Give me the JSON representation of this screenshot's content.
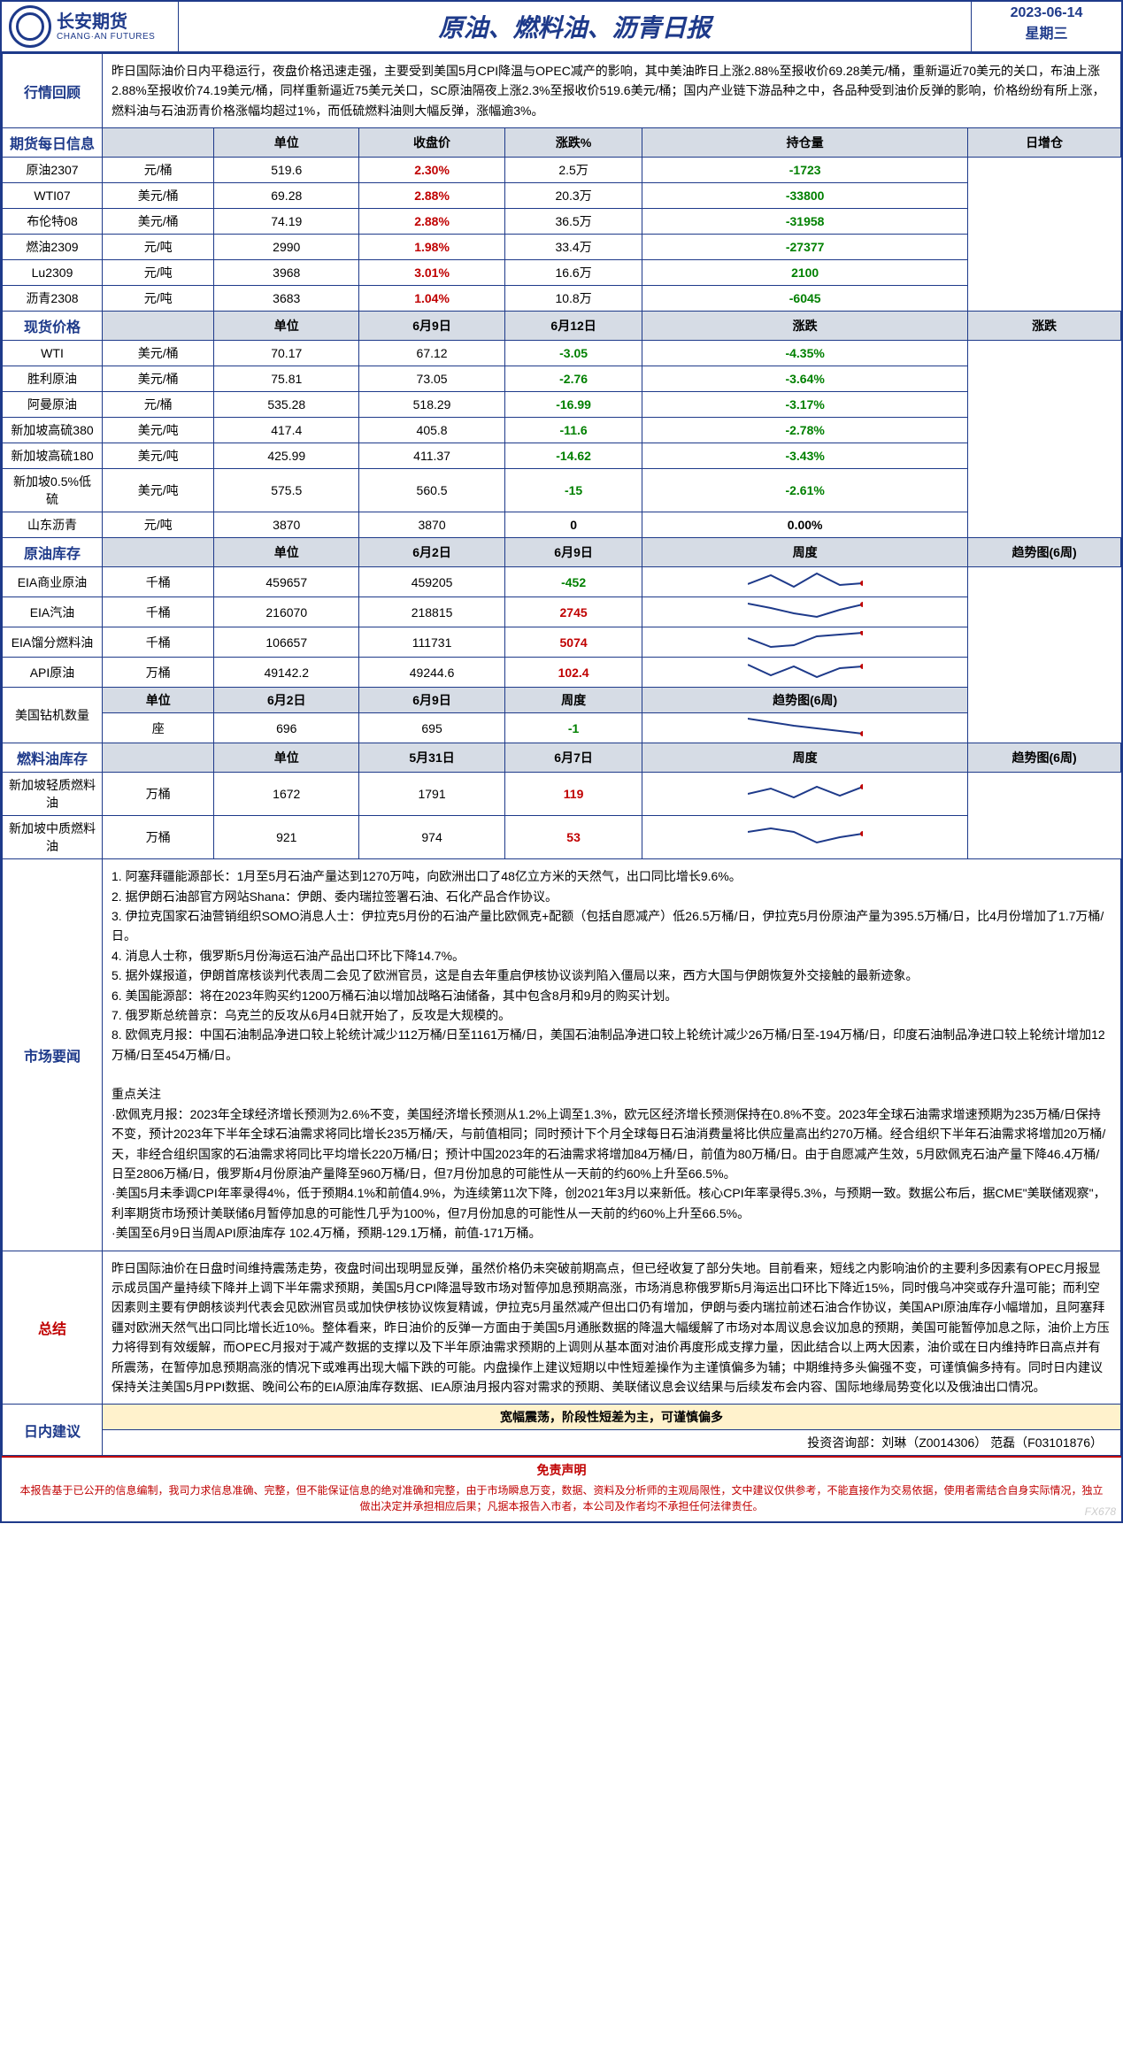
{
  "header": {
    "logo_cn": "长安期货",
    "logo_en": "CHANG·AN FUTURES",
    "title": "原油、燃料油、沥青日报",
    "date": "2023-06-14",
    "weekday": "星期三"
  },
  "review": {
    "label": "行情回顾",
    "text": "昨日国际油价日内平稳运行，夜盘价格迅速走强，主要受到美国5月CPI降温与OPEC减产的影响，其中美油昨日上涨2.88%至报收价69.28美元/桶，重新逼近70美元的关口，布油上涨2.88%至报收价74.19美元/桶，同样重新逼近75美元关口，SC原油隔夜上涨2.3%至报收价519.6美元/桶；国内产业链下游品种之中，各品种受到油价反弹的影响，价格纷纷有所上涨，燃料油与石油沥青价格涨幅均超过1%，而低硫燃料油则大幅反弹，涨幅逾3%。"
  },
  "futures": {
    "label": "期货每日信息",
    "cols": [
      "单位",
      "收盘价",
      "涨跌%",
      "持仓量",
      "日增仓"
    ],
    "rows": [
      {
        "name": "原油2307",
        "unit": "元/桶",
        "close": "519.6",
        "pct": "2.30%",
        "pct_cls": "red",
        "oi": "2.5万",
        "chg": "-1723",
        "chg_cls": "green"
      },
      {
        "name": "WTI07",
        "unit": "美元/桶",
        "close": "69.28",
        "pct": "2.88%",
        "pct_cls": "red",
        "oi": "20.3万",
        "chg": "-33800",
        "chg_cls": "green"
      },
      {
        "name": "布伦特08",
        "unit": "美元/桶",
        "close": "74.19",
        "pct": "2.88%",
        "pct_cls": "red",
        "oi": "36.5万",
        "chg": "-31958",
        "chg_cls": "green"
      },
      {
        "name": "燃油2309",
        "unit": "元/吨",
        "close": "2990",
        "pct": "1.98%",
        "pct_cls": "red",
        "oi": "33.4万",
        "chg": "-27377",
        "chg_cls": "green"
      },
      {
        "name": "Lu2309",
        "unit": "元/吨",
        "close": "3968",
        "pct": "3.01%",
        "pct_cls": "red",
        "oi": "16.6万",
        "chg": "2100",
        "chg_cls": "green"
      },
      {
        "name": "沥青2308",
        "unit": "元/吨",
        "close": "3683",
        "pct": "1.04%",
        "pct_cls": "red",
        "oi": "10.8万",
        "chg": "-6045",
        "chg_cls": "green"
      }
    ]
  },
  "spot": {
    "label": "现货价格",
    "cols": [
      "单位",
      "6月9日",
      "6月12日",
      "涨跌",
      "涨跌"
    ],
    "rows": [
      {
        "name": "WTI",
        "unit": "美元/桶",
        "d1": "70.17",
        "d2": "67.12",
        "chg": "-3.05",
        "chg_cls": "green",
        "pct": "-4.35%",
        "pct_cls": "green"
      },
      {
        "name": "胜利原油",
        "unit": "美元/桶",
        "d1": "75.81",
        "d2": "73.05",
        "chg": "-2.76",
        "chg_cls": "green",
        "pct": "-3.64%",
        "pct_cls": "green"
      },
      {
        "name": "阿曼原油",
        "unit": "元/桶",
        "d1": "535.28",
        "d2": "518.29",
        "chg": "-16.99",
        "chg_cls": "green",
        "pct": "-3.17%",
        "pct_cls": "green"
      },
      {
        "name": "新加坡高硫380",
        "unit": "美元/吨",
        "d1": "417.4",
        "d2": "405.8",
        "chg": "-11.6",
        "chg_cls": "green",
        "pct": "-2.78%",
        "pct_cls": "green"
      },
      {
        "name": "新加坡高硫180",
        "unit": "美元/吨",
        "d1": "425.99",
        "d2": "411.37",
        "chg": "-14.62",
        "chg_cls": "green",
        "pct": "-3.43%",
        "pct_cls": "green"
      },
      {
        "name": "新加坡0.5%低硫",
        "unit": "美元/吨",
        "d1": "575.5",
        "d2": "560.5",
        "chg": "-15",
        "chg_cls": "green",
        "pct": "-2.61%",
        "pct_cls": "green"
      },
      {
        "name": "山东沥青",
        "unit": "元/吨",
        "d1": "3870",
        "d2": "3870",
        "chg": "0",
        "chg_cls": "blue-bold",
        "pct": "0.00%",
        "pct_cls": "blue-bold"
      }
    ]
  },
  "inventory": {
    "label": "原油库存",
    "cols": [
      "单位",
      "6月2日",
      "6月9日",
      "周度",
      "趋势图(6周)"
    ],
    "rows": [
      {
        "name": "EIA商业原油",
        "unit": "千桶",
        "d1": "459657",
        "d2": "459205",
        "chg": "-452",
        "chg_cls": "green",
        "spark": [
          15,
          5,
          18,
          3,
          16,
          14
        ]
      },
      {
        "name": "EIA汽油",
        "unit": "千桶",
        "d1": "216070",
        "d2": "218815",
        "chg": "2745",
        "chg_cls": "red",
        "spark": [
          3,
          8,
          14,
          18,
          10,
          4
        ]
      },
      {
        "name": "EIA馏分燃料油",
        "unit": "千桶",
        "d1": "106657",
        "d2": "111731",
        "chg": "5074",
        "chg_cls": "red",
        "spark": [
          8,
          18,
          16,
          6,
          4,
          2
        ]
      },
      {
        "name": "API原油",
        "unit": "万桶",
        "d1": "49142.2",
        "d2": "49244.6",
        "chg": "102.4",
        "chg_cls": "red",
        "spark": [
          4,
          16,
          6,
          18,
          8,
          6
        ]
      }
    ],
    "rigs": {
      "name": "美国钻机数量",
      "cols": [
        "单位",
        "6月2日",
        "6月9日",
        "周度",
        "趋势图(6周)"
      ],
      "unit": "座",
      "d1": "696",
      "d2": "695",
      "chg": "-1",
      "chg_cls": "green",
      "spark": [
        2,
        6,
        10,
        13,
        16,
        19
      ]
    }
  },
  "fuel_inv": {
    "label": "燃料油库存",
    "cols": [
      "单位",
      "5月31日",
      "6月7日",
      "周度",
      "趋势图(6周)"
    ],
    "rows": [
      {
        "name": "新加坡轻质燃料油",
        "unit": "万桶",
        "d1": "1672",
        "d2": "1791",
        "chg": "119",
        "chg_cls": "red",
        "spark": [
          12,
          6,
          16,
          4,
          14,
          4
        ]
      },
      {
        "name": "新加坡中质燃料油",
        "unit": "万桶",
        "d1": "921",
        "d2": "974",
        "chg": "53",
        "chg_cls": "red",
        "spark": [
          6,
          2,
          6,
          18,
          12,
          8
        ]
      }
    ]
  },
  "news": {
    "label": "市场要闻",
    "items": [
      "1. 阿塞拜疆能源部长：1月至5月石油产量达到1270万吨，向欧洲出口了48亿立方米的天然气，出口同比增长9.6%。",
      "2. 据伊朗石油部官方网站Shana：伊朗、委内瑞拉签署石油、石化产品合作协议。",
      "3. 伊拉克国家石油营销组织SOMO消息人士：伊拉克5月份的石油产量比欧佩克+配额（包括自愿减产）低26.5万桶/日，伊拉克5月份原油产量为395.5万桶/日，比4月份增加了1.7万桶/日。",
      "4. 消息人士称，俄罗斯5月份海运石油产品出口环比下降14.7%。",
      "5. 据外媒报道，伊朗首席核谈判代表周二会见了欧洲官员，这是自去年重启伊核协议谈判陷入僵局以来，西方大国与伊朗恢复外交接触的最新迹象。",
      "6. 美国能源部：将在2023年购买约1200万桶石油以增加战略石油储备，其中包含8月和9月的购买计划。",
      "7. 俄罗斯总统普京：乌克兰的反攻从6月4日就开始了，反攻是大规模的。",
      "8. 欧佩克月报：中国石油制品净进口较上轮统计减少112万桶/日至1161万桶/日，美国石油制品净进口较上轮统计减少26万桶/日至-194万桶/日，印度石油制品净进口较上轮统计增加12万桶/日至454万桶/日。"
    ],
    "focus_label": "重点关注",
    "focus": [
      "·欧佩克月报：2023年全球经济增长预测为2.6%不变，美国经济增长预测从1.2%上调至1.3%，欧元区经济增长预测保持在0.8%不变。2023年全球石油需求增速预期为235万桶/日保持不变，预计2023年下半年全球石油需求将同比增长235万桶/天，与前值相同；同时预计下个月全球每日石油消费量将比供应量高出约270万桶。经合组织下半年石油需求将增加20万桶/天，非经合组织国家的石油需求将同比平均增长220万桶/日；预计中国2023年的石油需求将增加84万桶/日，前值为80万桶/日。由于自愿减产生效，5月欧佩克石油产量下降46.4万桶/日至2806万桶/日，俄罗斯4月份原油产量降至960万桶/日，但7月份加息的可能性从一天前的约60%上升至66.5%。",
      "·美国5月未季调CPI年率录得4%，低于预期4.1%和前值4.9%，为连续第11次下降，创2021年3月以来新低。核心CPI年率录得5.3%，与预期一致。数据公布后，据CME\"美联储观察\"，利率期货市场预计美联储6月暂停加息的可能性几乎为100%，但7月份加息的可能性从一天前的约60%上升至66.5%。",
      "·美国至6月9日当周API原油库存 102.4万桶，预期-129.1万桶，前值-171万桶。"
    ]
  },
  "summary": {
    "label": "总结",
    "text": "昨日国际油价在日盘时间维持震荡走势，夜盘时间出现明显反弹，虽然价格仍未突破前期高点，但已经收复了部分失地。目前看来，短线之内影响油价的主要利多因素有OPEC月报显示成员国产量持续下降并上调下半年需求预期，美国5月CPI降温导致市场对暂停加息预期高涨，市场消息称俄罗斯5月海运出口环比下降近15%，同时俄乌冲突或存升温可能；而利空因素则主要有伊朗核谈判代表会见欧洲官员或加快伊核协议恢复精诚，伊拉克5月虽然减产但出口仍有增加，伊朗与委内瑞拉前述石油合作协议，美国API原油库存小幅增加，且阿塞拜疆对欧洲天然气出口同比增长近10%。整体看来，昨日油价的反弹一方面由于美国5月通胀数据的降温大幅缓解了市场对本周议息会议加息的预期，美国可能暂停加息之际，油价上方压力将得到有效缓解，而OPEC月报对于减产数据的支撑以及下半年原油需求预期的上调则从基本面对油价再度形成支撑力量，因此结合以上两大因素，油价或在日内维持昨日高点并有所震荡，在暂停加息预期高涨的情况下或难再出现大幅下跌的可能。内盘操作上建议短期以中性短差操作为主谨慎偏多为辅；中期维持多头偏强不变，可谨慎偏多持有。同时日内建议保持关注美国5月PPI数据、晚间公布的EIA原油库存数据、IEA原油月报内容对需求的预期、美联储议息会议结果与后续发布会内容、国际地缘局势变化以及俄油出口情况。"
  },
  "advice": {
    "label": "日内建议",
    "line": "宽幅震荡，阶段性短差为主，可谨慎偏多",
    "contact": "投资咨询部：刘琳（Z0014306） 范磊（F03101876）"
  },
  "disclaimer": {
    "title": "免责声明",
    "text": "本报告基于已公开的信息编制，我司力求信息准确、完整，但不能保证信息的绝对准确和完整，由于市场瞬息万变，数据、资料及分析师的主观局限性，文中建议仅供参考，不能直接作为交易依据，使用者需结合自身实际情况，独立做出决定并承担相应后果；凡据本报告入市者，本公司及作者均不承担任何法律责任。"
  },
  "watermark": "FX678"
}
